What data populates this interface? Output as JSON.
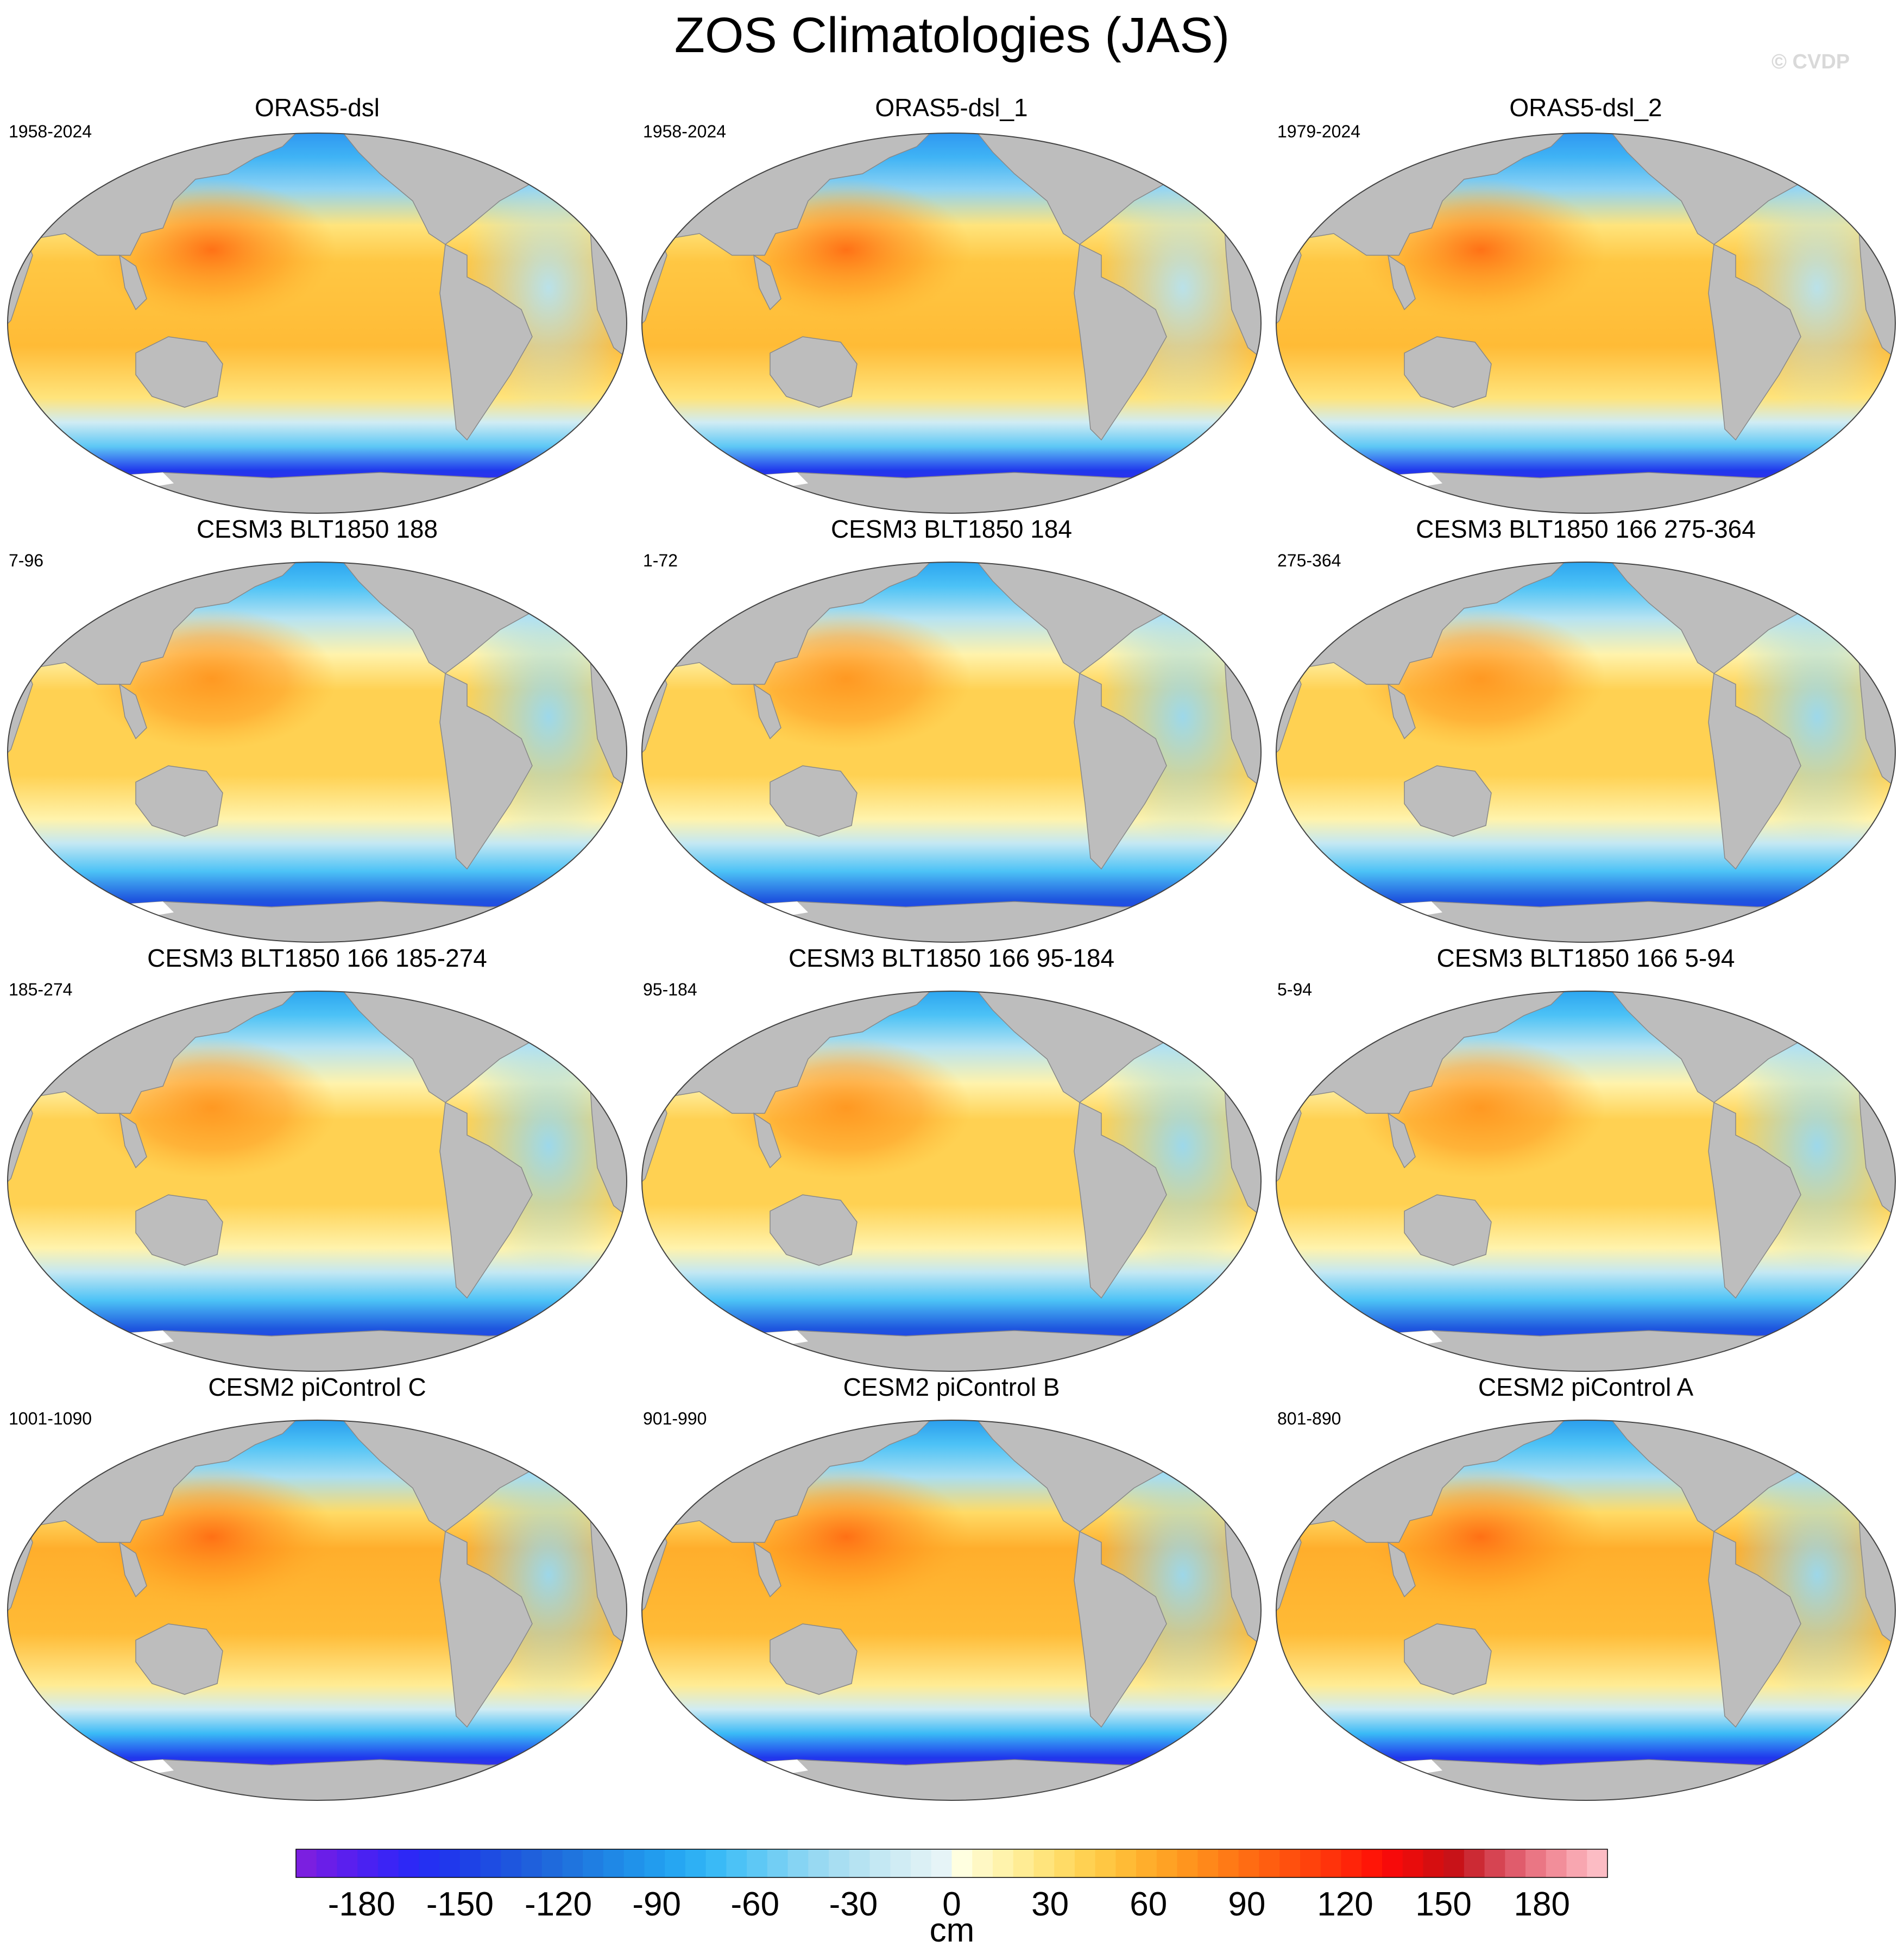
{
  "title": "ZOS Climatologies (JAS)",
  "watermark": "© CVDP",
  "colors": {
    "land": "#bdbdbd",
    "missing": "#ffffff"
  },
  "panels": [
    {
      "title": "ORAS5-dsl",
      "years": "1958-2024",
      "family": "oras"
    },
    {
      "title": "ORAS5-dsl_1",
      "years": "1958-2024",
      "family": "oras"
    },
    {
      "title": "ORAS5-dsl_2",
      "years": "1979-2024",
      "family": "oras"
    },
    {
      "title": "CESM3 BLT1850 188",
      "years": "7-96",
      "family": "cesm3"
    },
    {
      "title": "CESM3 BLT1850 184",
      "years": "1-72",
      "family": "cesm3"
    },
    {
      "title": "CESM3 BLT1850 166 275-364",
      "years": "275-364",
      "family": "cesm3"
    },
    {
      "title": "CESM3 BLT1850 166 185-274",
      "years": "185-274",
      "family": "cesm3"
    },
    {
      "title": "CESM3 BLT1850 166 95-184",
      "years": "95-184",
      "family": "cesm3"
    },
    {
      "title": "CESM3 BLT1850 166 5-94",
      "years": "5-94",
      "family": "cesm3"
    },
    {
      "title": "CESM2 piControl C",
      "years": "1001-1090",
      "family": "cesm2"
    },
    {
      "title": "CESM2 piControl B",
      "years": "901-990",
      "family": "cesm2"
    },
    {
      "title": "CESM2 piControl A",
      "years": "801-890",
      "family": "cesm2"
    }
  ],
  "colorbar": {
    "units": "cm",
    "tick_labels": [
      "-180",
      "-150",
      "-120",
      "-90",
      "-60",
      "-30",
      "0",
      "30",
      "60",
      "90",
      "120",
      "150",
      "180"
    ],
    "tick_values": [
      -180,
      -150,
      -120,
      -90,
      -60,
      -30,
      0,
      30,
      60,
      90,
      120,
      150,
      180
    ],
    "min": -200,
    "max": 200,
    "step": 5,
    "colors": [
      "#7b1fe0",
      "#6a1ee8",
      "#5a1fee",
      "#4a21f2",
      "#3b24f5",
      "#2d28f6",
      "#2430f2",
      "#2038ec",
      "#1e42e6",
      "#1e4ce2",
      "#1e56de",
      "#1f60dc",
      "#1f6adc",
      "#1f74de",
      "#1f7ee2",
      "#1f88e6",
      "#2092ea",
      "#229cee",
      "#26a6f2",
      "#2eb0f4",
      "#3abaf6",
      "#4cc2f6",
      "#5ec8f5",
      "#72cef4",
      "#86d4f3",
      "#98d9f2",
      "#a8def2",
      "#b6e3f2",
      "#c4e8f3",
      "#d0ecf4",
      "#dbf0f5",
      "#e6f4f7",
      "#ffffe0",
      "#fff8c4",
      "#fff3ac",
      "#ffec94",
      "#ffe47c",
      "#ffdb66",
      "#ffd152",
      "#ffc743",
      "#ffbb36",
      "#ffae2c",
      "#ffa224",
      "#ff951e",
      "#ff881a",
      "#ff7a16",
      "#ff6c13",
      "#ff5e10",
      "#ff500e",
      "#ff420c",
      "#ff330b",
      "#ff2409",
      "#ff1507",
      "#f70a0a",
      "#e80c0c",
      "#d60e10",
      "#c81218",
      "#cc2a34",
      "#d64452",
      "#e05c6c",
      "#ea7684",
      "#f28e9a",
      "#f8a6b0",
      "#fcbcc4"
    ]
  }
}
